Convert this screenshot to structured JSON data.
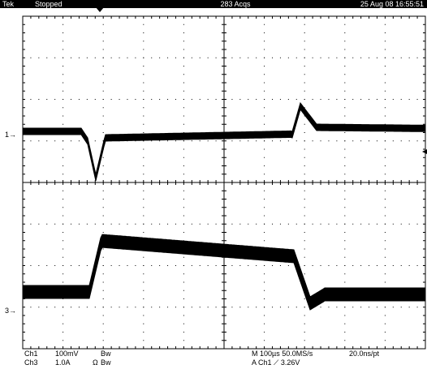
{
  "header": {
    "brand": "Tek",
    "state": "Stopped",
    "acquisitions": "283 Acqs",
    "datetime": "25 Aug 08 16:55:51"
  },
  "markers": {
    "ch1": "1",
    "ch3": "3"
  },
  "footer": {
    "ch1_label": "Ch1",
    "ch1_scale": "100mV",
    "ch1_bw": "Bw",
    "ch3_label": "Ch3",
    "ch3_scale": "1.0A",
    "ch3_coupling": "Ω",
    "ch3_bw": "Bw",
    "timebase": "M 100µs 50.0MS/s",
    "record": "20.0ns/pt",
    "trigger": "A Ch1 ⟋ 3.26V"
  },
  "colors": {
    "background": "#ffffff",
    "trace": "#000000",
    "grid": "#000000"
  }
}
